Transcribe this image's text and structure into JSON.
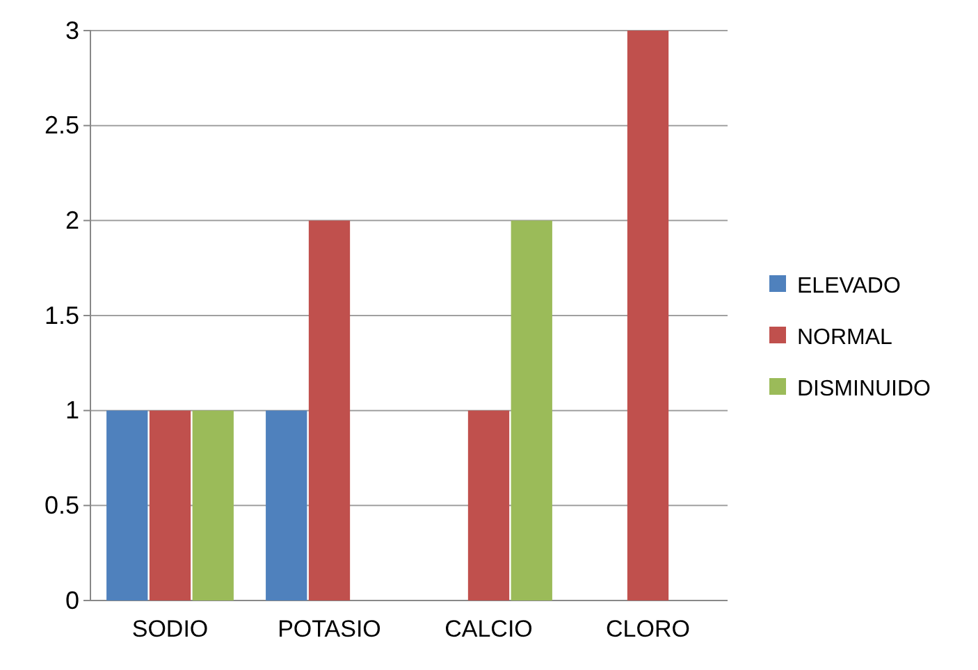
{
  "chart_data": {
    "type": "bar",
    "categories": [
      "SODIO",
      "POTASIO",
      "CALCIO",
      "CLORO"
    ],
    "series": [
      {
        "name": "ELEVADO",
        "color": "#4f81bd",
        "values": [
          1,
          1,
          0,
          0
        ]
      },
      {
        "name": "NORMAL",
        "color": "#c0504d",
        "values": [
          1,
          2,
          1,
          3
        ]
      },
      {
        "name": "DISMINUIDO",
        "color": "#9bbb59",
        "values": [
          1,
          0,
          2,
          0
        ]
      }
    ],
    "ylim": [
      0,
      3
    ],
    "yticks": [
      0,
      0.5,
      1,
      1.5,
      2,
      2.5,
      3
    ],
    "grid": "y",
    "legend": "right"
  }
}
